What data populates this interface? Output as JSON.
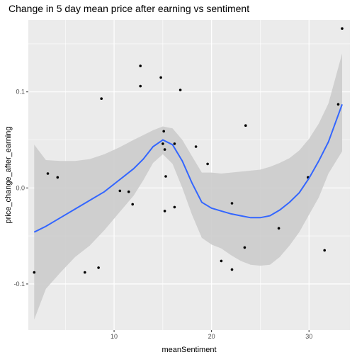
{
  "chart_data": {
    "type": "scatter",
    "title": "Change in 5 day mean price after earning vs sentiment",
    "xlabel": "meanSentiment",
    "ylabel": "price_change_after_earning",
    "xlim": [
      1.2,
      34.2
    ],
    "ylim": [
      -0.148,
      0.175
    ],
    "x_ticks": [
      10,
      20,
      30
    ],
    "x_tick_labels": [
      "10",
      "20",
      "30"
    ],
    "y_ticks": [
      -0.1,
      0.0,
      0.1
    ],
    "y_tick_labels": [
      "-0.1",
      "0.0",
      "0.1"
    ],
    "grid": true,
    "background_color": "#ebebeb",
    "point_color": "#000000",
    "smooth_line_color": "#3366ff",
    "band_color": "#cccccc",
    "points": [
      {
        "x": 1.8,
        "y": -0.088
      },
      {
        "x": 3.2,
        "y": 0.015
      },
      {
        "x": 4.2,
        "y": 0.011
      },
      {
        "x": 7.0,
        "y": -0.088
      },
      {
        "x": 8.4,
        "y": -0.083
      },
      {
        "x": 8.7,
        "y": 0.093
      },
      {
        "x": 10.6,
        "y": -0.003
      },
      {
        "x": 11.5,
        "y": -0.004
      },
      {
        "x": 11.9,
        "y": -0.017
      },
      {
        "x": 12.7,
        "y": 0.127
      },
      {
        "x": 12.7,
        "y": 0.106
      },
      {
        "x": 14.8,
        "y": 0.115
      },
      {
        "x": 15.0,
        "y": 0.046
      },
      {
        "x": 15.1,
        "y": 0.059
      },
      {
        "x": 15.2,
        "y": 0.04
      },
      {
        "x": 15.2,
        "y": -0.024
      },
      {
        "x": 15.3,
        "y": 0.012
      },
      {
        "x": 16.2,
        "y": 0.046
      },
      {
        "x": 16.2,
        "y": -0.02
      },
      {
        "x": 16.8,
        "y": 0.102
      },
      {
        "x": 18.4,
        "y": 0.043
      },
      {
        "x": 19.6,
        "y": 0.025
      },
      {
        "x": 21.0,
        "y": -0.076
      },
      {
        "x": 22.1,
        "y": -0.016
      },
      {
        "x": 22.1,
        "y": -0.085
      },
      {
        "x": 23.4,
        "y": -0.062
      },
      {
        "x": 23.5,
        "y": 0.065
      },
      {
        "x": 26.9,
        "y": -0.042
      },
      {
        "x": 29.9,
        "y": 0.011
      },
      {
        "x": 31.6,
        "y": -0.065
      },
      {
        "x": 33.0,
        "y": 0.087
      },
      {
        "x": 33.4,
        "y": 0.166
      }
    ],
    "smooth_line": {
      "x": [
        1.8,
        3,
        4.5,
        6,
        7.5,
        9,
        10.5,
        12,
        13,
        14,
        15,
        16,
        17,
        18,
        19,
        20,
        21,
        22,
        23,
        24,
        25,
        26,
        27,
        28,
        29,
        30,
        31,
        32,
        33.4
      ],
      "y": [
        -0.046,
        -0.04,
        -0.031,
        -0.022,
        -0.013,
        -0.004,
        0.008,
        0.02,
        0.03,
        0.043,
        0.05,
        0.045,
        0.028,
        0.005,
        -0.015,
        -0.021,
        -0.024,
        -0.027,
        -0.029,
        -0.031,
        -0.031,
        -0.029,
        -0.023,
        -0.015,
        -0.005,
        0.01,
        0.028,
        0.048,
        0.087
      ]
    },
    "confidence_band": {
      "x": [
        1.8,
        3,
        4.5,
        6,
        7.5,
        9,
        10.5,
        12,
        13,
        14,
        15,
        16,
        17,
        18,
        19,
        20,
        21,
        22,
        23,
        24,
        25,
        26,
        27,
        28,
        29,
        30,
        31,
        32,
        33.4
      ],
      "lower": [
        -0.137,
        -0.105,
        -0.088,
        -0.072,
        -0.06,
        -0.044,
        -0.026,
        -0.008,
        0.008,
        0.026,
        0.035,
        0.025,
        0.0,
        -0.028,
        -0.052,
        -0.059,
        -0.063,
        -0.07,
        -0.076,
        -0.08,
        -0.081,
        -0.08,
        -0.072,
        -0.06,
        -0.046,
        -0.028,
        -0.01,
        0.015,
        0.038
      ],
      "upper": [
        0.045,
        0.029,
        0.028,
        0.028,
        0.03,
        0.035,
        0.042,
        0.05,
        0.055,
        0.06,
        0.064,
        0.062,
        0.05,
        0.033,
        0.016,
        0.016,
        0.015,
        0.016,
        0.017,
        0.018,
        0.019,
        0.022,
        0.026,
        0.031,
        0.039,
        0.051,
        0.067,
        0.088,
        0.14
      ]
    }
  }
}
